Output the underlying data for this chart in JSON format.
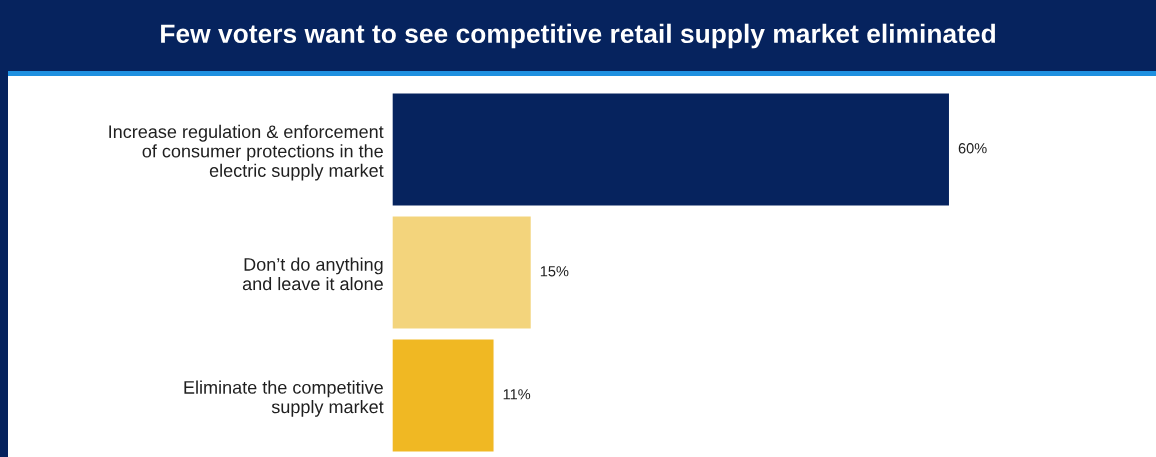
{
  "chart_data": {
    "type": "bar",
    "orientation": "horizontal",
    "title": "Few voters want to see competitive retail supply market eliminated",
    "categories": [
      "Increase regulation & enforcement\nof consumer protections in the\nelectric supply market",
      "Don’t do anything\nand leave it alone",
      "Eliminate the competitive\nsupply market"
    ],
    "values": [
      60,
      15,
      11
    ],
    "colors": [
      "#06235e",
      "#f3d47c",
      "#f0b823"
    ],
    "value_labels": [
      "60%",
      "15%",
      "11%"
    ]
  }
}
